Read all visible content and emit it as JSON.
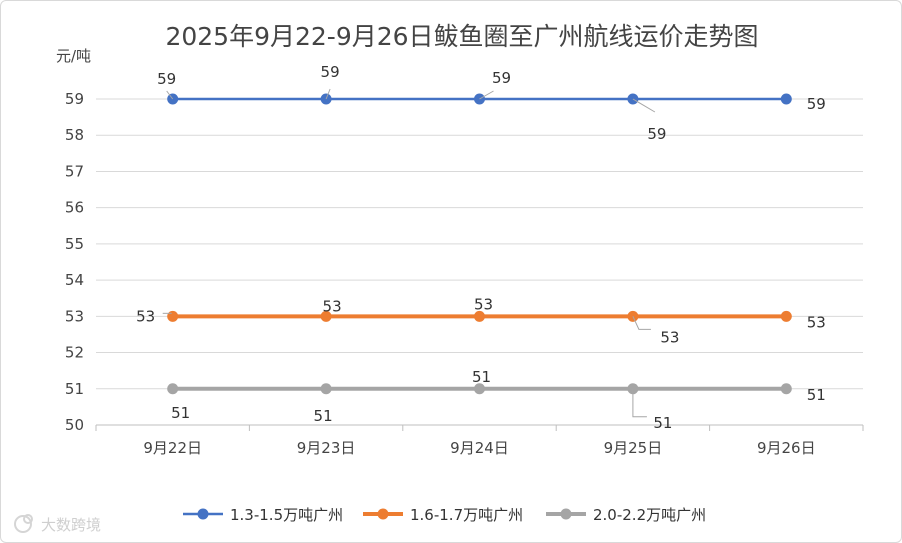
{
  "chart_data": {
    "type": "line",
    "title": "2025年9月22-9月26日鲅鱼圈至广州航线运价走势图",
    "ylabel": "元/吨",
    "xlabel": "",
    "categories": [
      "9月22日",
      "9月23日",
      "9月24日",
      "9月25日",
      "9月26日"
    ],
    "ylim": [
      50,
      59
    ],
    "yticks": [
      "50",
      "51",
      "52",
      "53",
      "54",
      "55",
      "56",
      "57",
      "58",
      "59"
    ],
    "grid": true,
    "legend_position": "bottom",
    "series": [
      {
        "name": "1.3-1.5万吨广州",
        "color": "#4472C4",
        "values": [
          59,
          59,
          59,
          59,
          59
        ],
        "labels": [
          "59",
          "59",
          "59",
          "59",
          "59"
        ]
      },
      {
        "name": "1.6-1.7万吨广州",
        "color": "#ED7D31",
        "values": [
          53,
          53,
          53,
          53,
          53
        ],
        "labels": [
          "53",
          "53",
          "53",
          "53",
          "53"
        ]
      },
      {
        "name": "2.0-2.2万吨广州",
        "color": "#A5A5A5",
        "values": [
          51,
          51,
          51,
          51,
          51
        ],
        "labels": [
          "51",
          "51",
          "51",
          "51",
          "51"
        ]
      }
    ]
  },
  "watermark": {
    "text": "大数跨境"
  }
}
